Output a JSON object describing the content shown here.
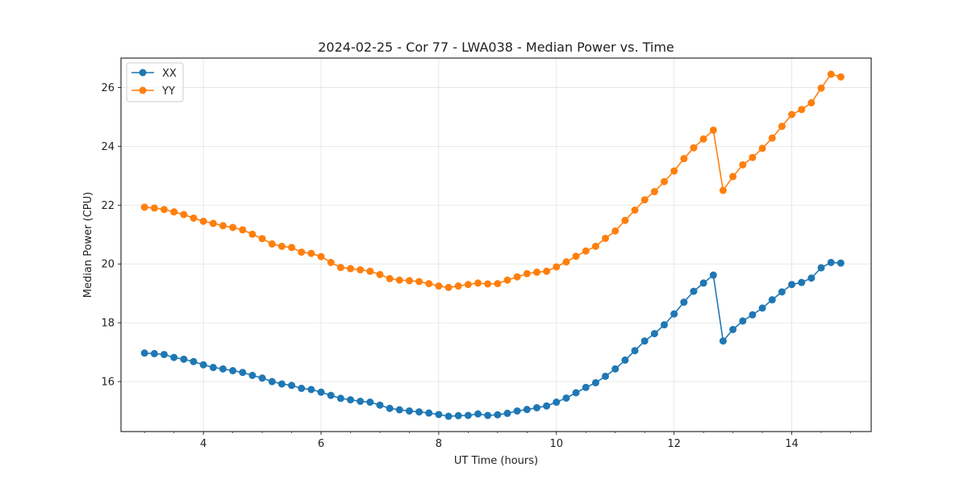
{
  "chart_data": {
    "type": "line",
    "title": "2024-02-25 - Cor 77 - LWA038 - Median Power vs. Time",
    "xlabel": "UT Time (hours)",
    "ylabel": "Median Power (CPU)",
    "xlim": [
      2.6,
      15.35
    ],
    "ylim": [
      14.3,
      27.0
    ],
    "xticks": [
      4,
      6,
      8,
      10,
      12,
      14
    ],
    "yticks": [
      16,
      18,
      20,
      22,
      24,
      26
    ],
    "xminor_step": 0.5,
    "grid": true,
    "legend_position": "upper-left",
    "x": [
      3.0,
      3.167,
      3.333,
      3.5,
      3.667,
      3.833,
      4.0,
      4.167,
      4.333,
      4.5,
      4.667,
      4.833,
      5.0,
      5.167,
      5.333,
      5.5,
      5.667,
      5.833,
      6.0,
      6.167,
      6.333,
      6.5,
      6.667,
      6.833,
      7.0,
      7.167,
      7.333,
      7.5,
      7.667,
      7.833,
      8.0,
      8.167,
      8.333,
      8.5,
      8.667,
      8.833,
      9.0,
      9.167,
      9.333,
      9.5,
      9.667,
      9.833,
      10.0,
      10.167,
      10.333,
      10.5,
      10.667,
      10.833,
      11.0,
      11.167,
      11.333,
      11.5,
      11.667,
      11.833,
      12.0,
      12.167,
      12.333,
      12.5,
      12.667,
      12.833,
      13.0,
      13.167,
      13.333,
      13.5,
      13.667,
      13.833,
      14.0,
      14.167,
      14.333,
      14.5,
      14.667,
      14.833
    ],
    "series": [
      {
        "name": "XX",
        "color": "#1f77b4",
        "values": [
          16.97,
          16.95,
          16.92,
          16.82,
          16.76,
          16.68,
          16.57,
          16.48,
          16.43,
          16.37,
          16.31,
          16.21,
          16.12,
          16.0,
          15.92,
          15.87,
          15.77,
          15.73,
          15.64,
          15.53,
          15.43,
          15.38,
          15.33,
          15.3,
          15.2,
          15.09,
          15.04,
          15.0,
          14.97,
          14.93,
          14.88,
          14.82,
          14.84,
          14.85,
          14.9,
          14.85,
          14.87,
          14.92,
          15.0,
          15.05,
          15.11,
          15.17,
          15.3,
          15.44,
          15.62,
          15.8,
          15.96,
          16.18,
          16.43,
          16.73,
          17.05,
          17.38,
          17.63,
          17.93,
          18.3,
          18.7,
          19.07,
          19.35,
          19.62,
          17.38,
          17.77,
          18.06,
          18.27,
          18.5,
          18.78,
          19.05,
          19.3,
          19.37,
          19.52,
          19.87,
          20.05,
          20.03
        ]
      },
      {
        "name": "YY",
        "color": "#ff7f0e",
        "values": [
          21.93,
          21.9,
          21.85,
          21.77,
          21.68,
          21.56,
          21.45,
          21.38,
          21.3,
          21.24,
          21.16,
          21.01,
          20.86,
          20.68,
          20.6,
          20.56,
          20.4,
          20.36,
          20.25,
          20.05,
          19.88,
          19.84,
          19.8,
          19.75,
          19.64,
          19.5,
          19.45,
          19.43,
          19.4,
          19.33,
          19.25,
          19.2,
          19.25,
          19.3,
          19.35,
          19.32,
          19.33,
          19.45,
          19.56,
          19.67,
          19.72,
          19.75,
          19.9,
          20.07,
          20.26,
          20.44,
          20.6,
          20.87,
          21.12,
          21.48,
          21.83,
          22.18,
          22.46,
          22.8,
          23.16,
          23.58,
          23.95,
          24.25,
          24.55,
          22.5,
          22.97,
          23.37,
          23.62,
          23.93,
          24.28,
          24.68,
          25.08,
          25.25,
          25.48,
          25.98,
          26.45,
          26.36
        ]
      }
    ]
  }
}
